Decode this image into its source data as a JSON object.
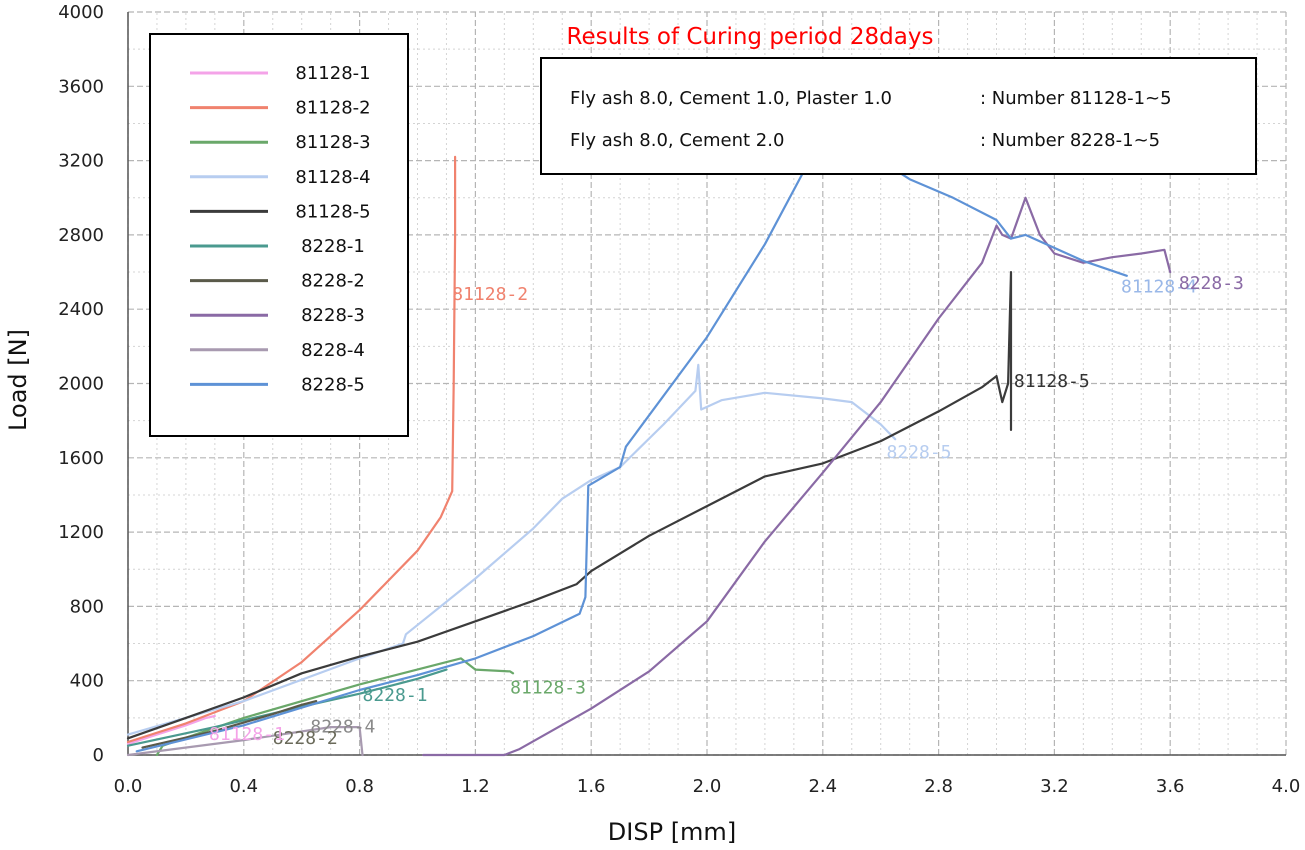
{
  "chart_data": {
    "type": "line",
    "title": "Results of Curing period 28days",
    "title_color": "#ff0000",
    "xlabel": "DISP [mm]",
    "ylabel": "Load [N]",
    "xlim": [
      0.0,
      4.0
    ],
    "ylim": [
      0,
      4000
    ],
    "x_ticks": [
      "0.0",
      "0.4",
      "0.8",
      "1.2",
      "1.6",
      "2.0",
      "2.4",
      "2.8",
      "3.2",
      "3.6",
      "4.0"
    ],
    "y_ticks": [
      "0",
      "400",
      "800",
      "1200",
      "1600",
      "2000",
      "2400",
      "2800",
      "3200",
      "3600",
      "4000"
    ],
    "grid": true,
    "legend_position": "top-left",
    "info_box": [
      {
        "left": "Fly ash 8.0, Cement 1.0, Plaster 1.0",
        "right": ":  Number 81128-1~5"
      },
      {
        "left": "Fly ash 8.0, Cement 2.0",
        "right": ":  Number 8228-1~5"
      }
    ],
    "series": [
      {
        "name": "81128-1",
        "color": "#f4a3e8",
        "label": "81128-1",
        "points": [
          [
            0.0,
            60
          ],
          [
            0.1,
            110
          ],
          [
            0.2,
            160
          ],
          [
            0.27,
            200
          ],
          [
            0.3,
            210
          ]
        ]
      },
      {
        "name": "81128-2",
        "color": "#f0826e",
        "label": "81128-2",
        "points": [
          [
            0.0,
            70
          ],
          [
            0.2,
            170
          ],
          [
            0.4,
            290
          ],
          [
            0.6,
            500
          ],
          [
            0.8,
            780
          ],
          [
            1.0,
            1100
          ],
          [
            1.08,
            1280
          ],
          [
            1.12,
            1420
          ],
          [
            1.125,
            2000
          ],
          [
            1.13,
            2800
          ],
          [
            1.13,
            3220
          ]
        ]
      },
      {
        "name": "81128-3",
        "color": "#6aa86a",
        "label": "81128-3",
        "points": [
          [
            0.1,
            0
          ],
          [
            0.12,
            50
          ],
          [
            0.4,
            200
          ],
          [
            0.8,
            380
          ],
          [
            1.1,
            500
          ],
          [
            1.15,
            520
          ],
          [
            1.2,
            460
          ],
          [
            1.32,
            450
          ],
          [
            1.33,
            440
          ]
        ]
      },
      {
        "name": "81128-4",
        "color": "#b7cdf0",
        "label": "",
        "points": [
          [
            0.0,
            110
          ],
          [
            0.4,
            290
          ],
          [
            0.8,
            520
          ],
          [
            0.95,
            600
          ],
          [
            0.96,
            650
          ],
          [
            1.2,
            950
          ],
          [
            1.4,
            1220
          ],
          [
            1.5,
            1380
          ],
          [
            1.6,
            1480
          ],
          [
            1.7,
            1550
          ],
          [
            1.85,
            1780
          ],
          [
            1.96,
            1960
          ],
          [
            1.97,
            2100
          ],
          [
            1.98,
            1860
          ],
          [
            2.05,
            1910
          ],
          [
            2.2,
            1950
          ],
          [
            2.4,
            1920
          ],
          [
            2.5,
            1900
          ],
          [
            2.6,
            1780
          ],
          [
            2.65,
            1700
          ]
        ]
      },
      {
        "name": "81128-5",
        "color": "#3b3b3b",
        "label": "81128-5",
        "points": [
          [
            0.0,
            90
          ],
          [
            0.2,
            200
          ],
          [
            0.4,
            310
          ],
          [
            0.6,
            440
          ],
          [
            0.8,
            530
          ],
          [
            1.0,
            610
          ],
          [
            1.2,
            720
          ],
          [
            1.4,
            830
          ],
          [
            1.55,
            920
          ],
          [
            1.6,
            990
          ],
          [
            1.8,
            1180
          ],
          [
            2.0,
            1340
          ],
          [
            2.2,
            1500
          ],
          [
            2.4,
            1570
          ],
          [
            2.6,
            1690
          ],
          [
            2.8,
            1850
          ],
          [
            2.95,
            1980
          ],
          [
            3.0,
            2040
          ],
          [
            3.02,
            1900
          ],
          [
            3.04,
            2000
          ],
          [
            3.05,
            2600
          ],
          [
            3.05,
            1750
          ]
        ]
      },
      {
        "name": "8228-1",
        "color": "#4a9a8f",
        "label": "8228-1",
        "points": [
          [
            0.0,
            50
          ],
          [
            0.3,
            150
          ],
          [
            0.6,
            260
          ],
          [
            0.8,
            330
          ],
          [
            0.9,
            370
          ],
          [
            1.0,
            410
          ],
          [
            1.1,
            460
          ]
        ]
      },
      {
        "name": "8228-2",
        "color": "#5a5a4a",
        "label": "8228-2",
        "points": [
          [
            0.05,
            40
          ],
          [
            0.3,
            130
          ],
          [
            0.5,
            220
          ],
          [
            0.6,
            270
          ],
          [
            0.65,
            290
          ]
        ]
      },
      {
        "name": "8228-3",
        "color": "#8a6aa5",
        "label": "8228-3",
        "points": [
          [
            1.02,
            0
          ],
          [
            1.3,
            0
          ],
          [
            1.35,
            30
          ],
          [
            1.6,
            250
          ],
          [
            1.8,
            450
          ],
          [
            2.0,
            720
          ],
          [
            2.2,
            1150
          ],
          [
            2.4,
            1520
          ],
          [
            2.6,
            1900
          ],
          [
            2.8,
            2350
          ],
          [
            2.95,
            2650
          ],
          [
            3.0,
            2850
          ],
          [
            3.02,
            2800
          ],
          [
            3.05,
            2780
          ],
          [
            3.1,
            3000
          ],
          [
            3.15,
            2800
          ],
          [
            3.2,
            2700
          ],
          [
            3.3,
            2650
          ],
          [
            3.4,
            2680
          ],
          [
            3.5,
            2700
          ],
          [
            3.58,
            2720
          ],
          [
            3.6,
            2600
          ]
        ]
      },
      {
        "name": "8228-4",
        "color": "#a89ab0",
        "label": "8228-4",
        "points": [
          [
            0.0,
            0
          ],
          [
            0.4,
            80
          ],
          [
            0.7,
            150
          ],
          [
            0.8,
            150
          ],
          [
            0.81,
            0
          ]
        ]
      },
      {
        "name": "8228-5",
        "color": "#5e92d6",
        "label": "8228-5",
        "points": [
          [
            0.03,
            20
          ],
          [
            0.4,
            160
          ],
          [
            0.8,
            350
          ],
          [
            1.0,
            430
          ],
          [
            1.2,
            520
          ],
          [
            1.4,
            640
          ],
          [
            1.56,
            760
          ],
          [
            1.58,
            850
          ],
          [
            1.59,
            1450
          ],
          [
            1.7,
            1550
          ],
          [
            1.72,
            1660
          ],
          [
            2.0,
            2250
          ],
          [
            2.2,
            2750
          ],
          [
            2.33,
            3130
          ],
          [
            2.35,
            3200
          ],
          [
            2.6,
            3200
          ],
          [
            2.7,
            3100
          ],
          [
            2.85,
            3000
          ],
          [
            3.0,
            2880
          ],
          [
            3.05,
            2780
          ],
          [
            3.1,
            2800
          ],
          [
            3.3,
            2660
          ],
          [
            3.45,
            2580
          ]
        ]
      }
    ],
    "annotations": [
      {
        "text": "81128-2",
        "x": 1.12,
        "y": 2450,
        "color": "#f0826e"
      },
      {
        "text": "81128-5",
        "x": 3.06,
        "y": 1980,
        "color": "#333333"
      },
      {
        "text": "8228-5",
        "x": 2.62,
        "y": 1600,
        "color": "#b7cdf0"
      },
      {
        "text": "81128-3",
        "x": 1.32,
        "y": 330,
        "color": "#6aa86a"
      },
      {
        "text": "8228-1",
        "x": 0.81,
        "y": 290,
        "color": "#4a9a8f"
      },
      {
        "text": "8228-4",
        "x": 0.63,
        "y": 120,
        "color": "#8a8a8a"
      },
      {
        "text": "8228-2",
        "x": 0.5,
        "y": 60,
        "color": "#6a6a5a"
      },
      {
        "text": "81128-1",
        "x": 0.28,
        "y": 80,
        "color": "#f4a3e8"
      },
      {
        "text": "81128-4",
        "x": 3.43,
        "y": 2490,
        "color": "#9ab8e8"
      },
      {
        "text": "8228-3",
        "x": 3.63,
        "y": 2510,
        "color": "#8a6aa5"
      }
    ]
  }
}
